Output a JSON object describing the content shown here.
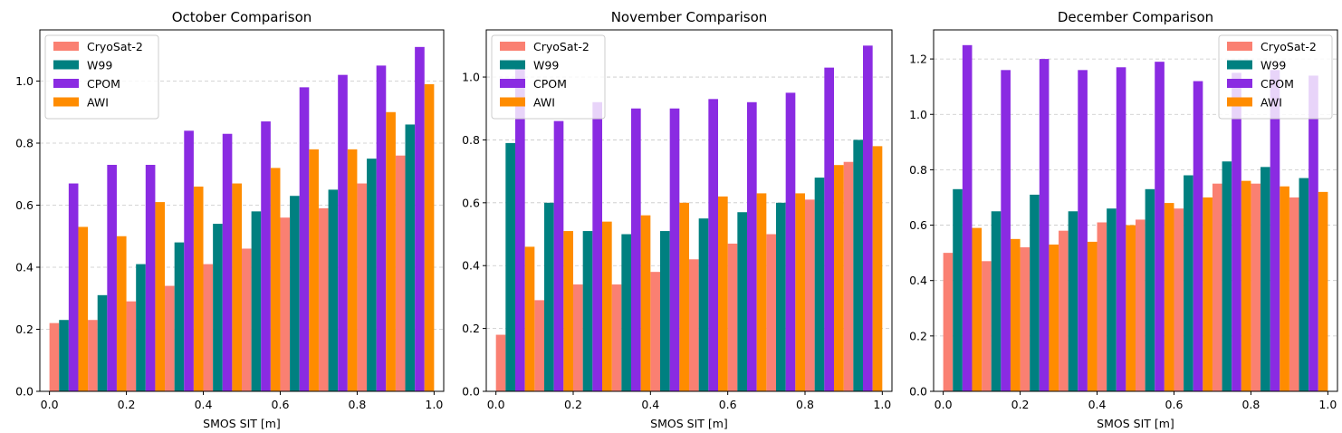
{
  "chart_data": [
    {
      "type": "bar",
      "title": "October Comparison",
      "xlabel": "SMOS SIT [m]",
      "ylabel": "",
      "xlim": [
        -0.025,
        1.025
      ],
      "ylim": [
        0,
        1.165
      ],
      "xticks": [
        "0.0",
        "0.2",
        "0.4",
        "0.6",
        "0.8",
        "1.0"
      ],
      "yticks": [
        "0.0",
        "0.2",
        "0.4",
        "0.6",
        "0.8",
        "1.0"
      ],
      "bin_centers": [
        0.05,
        0.15,
        0.25,
        0.35,
        0.45,
        0.55,
        0.65,
        0.75,
        0.85,
        0.95
      ],
      "series": [
        {
          "name": "CryoSat-2",
          "color": "#fa8072",
          "values": [
            0.22,
            0.23,
            0.29,
            0.34,
            0.41,
            0.46,
            0.56,
            0.59,
            0.67,
            0.76
          ]
        },
        {
          "name": "W99",
          "color": "#008080",
          "values": [
            0.23,
            0.31,
            0.41,
            0.48,
            0.54,
            0.58,
            0.63,
            0.65,
            0.75,
            0.86
          ]
        },
        {
          "name": "CPOM",
          "color": "#8a2be2",
          "values": [
            0.67,
            0.73,
            0.73,
            0.84,
            0.83,
            0.87,
            0.98,
            1.02,
            1.05,
            1.11
          ]
        },
        {
          "name": "AWI",
          "color": "#ff8c00",
          "values": [
            0.53,
            0.5,
            0.61,
            0.66,
            0.67,
            0.72,
            0.78,
            0.78,
            0.9,
            0.99
          ]
        }
      ],
      "grid": "y-dashed",
      "legend": "upper-left"
    },
    {
      "type": "bar",
      "title": "November Comparison",
      "xlabel": "SMOS SIT [m]",
      "ylabel": "",
      "xlim": [
        -0.025,
        1.025
      ],
      "ylim": [
        0,
        1.15
      ],
      "xticks": [
        "0.0",
        "0.2",
        "0.4",
        "0.6",
        "0.8",
        "1.0"
      ],
      "yticks": [
        "0.0",
        "0.2",
        "0.4",
        "0.6",
        "0.8",
        "1.0"
      ],
      "bin_centers": [
        0.05,
        0.15,
        0.25,
        0.35,
        0.45,
        0.55,
        0.65,
        0.75,
        0.85,
        0.95
      ],
      "series": [
        {
          "name": "CryoSat-2",
          "color": "#fa8072",
          "values": [
            0.18,
            0.29,
            0.34,
            0.34,
            0.38,
            0.42,
            0.47,
            0.5,
            0.61,
            0.73
          ]
        },
        {
          "name": "W99",
          "color": "#008080",
          "values": [
            0.79,
            0.6,
            0.51,
            0.5,
            0.51,
            0.55,
            0.57,
            0.6,
            0.68,
            0.8
          ]
        },
        {
          "name": "CPOM",
          "color": "#8a2be2",
          "values": [
            1.05,
            0.86,
            0.92,
            0.9,
            0.9,
            0.93,
            0.92,
            0.95,
            1.03,
            1.1
          ]
        },
        {
          "name": "AWI",
          "color": "#ff8c00",
          "values": [
            0.46,
            0.51,
            0.54,
            0.56,
            0.6,
            0.62,
            0.63,
            0.63,
            0.72,
            0.78
          ]
        }
      ],
      "grid": "y-dashed",
      "legend": "upper-left"
    },
    {
      "type": "bar",
      "title": "December Comparison",
      "xlabel": "SMOS SIT [m]",
      "ylabel": "",
      "xlim": [
        -0.025,
        1.025
      ],
      "ylim": [
        0,
        1.305
      ],
      "xticks": [
        "0.0",
        "0.2",
        "0.4",
        "0.6",
        "0.8",
        "1.0"
      ],
      "yticks": [
        "0.0",
        "0.2",
        "0.4",
        "0.6",
        "0.8",
        "1.0",
        "1.2"
      ],
      "bin_centers": [
        0.05,
        0.15,
        0.25,
        0.35,
        0.45,
        0.55,
        0.65,
        0.75,
        0.85,
        0.95
      ],
      "series": [
        {
          "name": "CryoSat-2",
          "color": "#fa8072",
          "values": [
            0.5,
            0.47,
            0.52,
            0.58,
            0.61,
            0.62,
            0.66,
            0.75,
            0.75,
            0.7
          ]
        },
        {
          "name": "W99",
          "color": "#008080",
          "values": [
            0.73,
            0.65,
            0.71,
            0.65,
            0.66,
            0.73,
            0.78,
            0.83,
            0.81,
            0.77
          ]
        },
        {
          "name": "CPOM",
          "color": "#8a2be2",
          "values": [
            1.25,
            1.16,
            1.2,
            1.16,
            1.17,
            1.19,
            1.12,
            1.15,
            1.16,
            1.14
          ]
        },
        {
          "name": "AWI",
          "color": "#ff8c00",
          "values": [
            0.59,
            0.55,
            0.53,
            0.54,
            0.6,
            0.68,
            0.7,
            0.76,
            0.74,
            0.72
          ]
        }
      ],
      "grid": "y-dashed",
      "legend": "upper-right"
    }
  ]
}
